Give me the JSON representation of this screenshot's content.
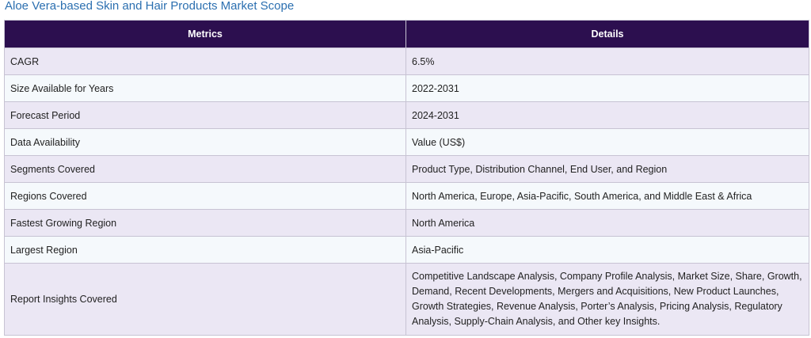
{
  "title": "Aloe Vera-based Skin and Hair Products Market Scope",
  "table": {
    "headers": [
      "Metrics",
      "Details"
    ],
    "rows": [
      {
        "metric": "CAGR",
        "detail": "6.5%"
      },
      {
        "metric": "Size Available for Years",
        "detail": "2022-2031"
      },
      {
        "metric": "Forecast Period",
        "detail": "2024-2031"
      },
      {
        "metric": "Data Availability",
        "detail": "Value (US$)"
      },
      {
        "metric": "Segments Covered",
        "detail": "Product Type, Distribution Channel, End User, and Region"
      },
      {
        "metric": "Regions Covered",
        "detail": "North America, Europe, Asia-Pacific, South America, and Middle East & Africa"
      },
      {
        "metric": "Fastest Growing Region",
        "detail": "North America"
      },
      {
        "metric": "Largest Region",
        "detail": "Asia-Pacific"
      },
      {
        "metric": "Report Insights Covered",
        "detail": "Competitive Landscape Analysis, Company Profile Analysis, Market Size, Share, Growth, Demand, Recent Developments, Mergers and Acquisitions, New Product Launches, Growth Strategies, Revenue Analysis, Porter’s Analysis, Pricing Analysis, Regulatory Analysis, Supply-Chain Analysis, and Other key Insights."
      }
    ]
  },
  "colors": {
    "title": "#2b6fb0",
    "header_bg": "#2c0f4f",
    "row_odd": "#ebe7f4",
    "row_even": "#f5f9fc",
    "border": "#c7c3d3"
  }
}
